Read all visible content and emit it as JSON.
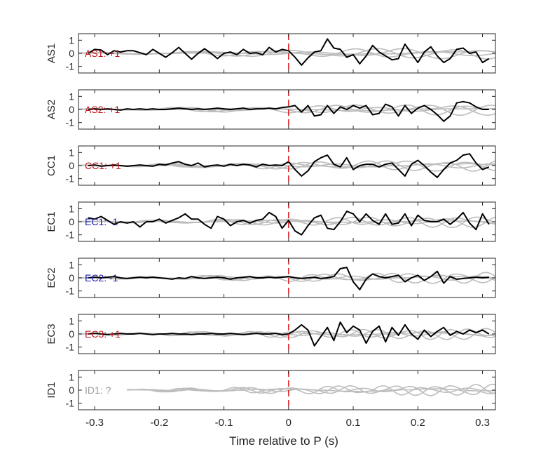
{
  "figure": {
    "xlabel": "Time relative to P (s)"
  },
  "chart_data": {
    "type": "line",
    "xlabel": "Time relative to P (s)",
    "xlim": [
      -0.325,
      0.32
    ],
    "xticks": [
      -0.3,
      -0.2,
      -0.1,
      0,
      0.1,
      0.2,
      0.3
    ],
    "xtick_labels": [
      "-0.3",
      "-0.2",
      "-0.1",
      "0",
      "0.1",
      "0.2",
      "0.3"
    ],
    "ylim": [
      -1.5,
      1.5
    ],
    "yticks": [
      1,
      0,
      -1
    ],
    "ytick_labels": [
      "1",
      "0",
      "-1"
    ],
    "marker_x": 0,
    "colors": {
      "trace": "#000000",
      "background_traces": "#bdbdbd",
      "marker_line": "#e02020",
      "label_positive": "#c0141b",
      "label_negative": "#1a1aa8",
      "label_unknown": "#9a9a9a"
    },
    "panels": [
      {
        "ylabel": "AS1",
        "label": "AS1: +1",
        "label_color": "#c0141b",
        "x": [
          -0.31,
          -0.3,
          -0.29,
          -0.28,
          -0.27,
          -0.26,
          -0.25,
          -0.24,
          -0.23,
          -0.22,
          -0.21,
          -0.2,
          -0.19,
          -0.18,
          -0.17,
          -0.16,
          -0.15,
          -0.14,
          -0.13,
          -0.12,
          -0.11,
          -0.1,
          -0.09,
          -0.08,
          -0.07,
          -0.06,
          -0.05,
          -0.04,
          -0.03,
          -0.02,
          -0.01,
          0,
          0.01,
          0.02,
          0.03,
          0.04,
          0.05,
          0.06,
          0.07,
          0.08,
          0.09,
          0.1,
          0.11,
          0.12,
          0.13,
          0.14,
          0.15,
          0.16,
          0.17,
          0.18,
          0.19,
          0.2,
          0.21,
          0.22,
          0.23,
          0.24,
          0.25,
          0.26,
          0.27,
          0.28,
          0.29,
          0.3,
          0.31
        ],
        "values": [
          0.0,
          0.3,
          0.25,
          -0.1,
          0.2,
          0.1,
          0.2,
          0.2,
          0.05,
          -0.1,
          0.3,
          0.0,
          -0.3,
          0.05,
          0.45,
          0.0,
          -0.45,
          0.0,
          0.35,
          0.0,
          -0.4,
          0.0,
          0.1,
          -0.1,
          0.3,
          0.0,
          0.05,
          -0.1,
          0.45,
          0.1,
          0.3,
          0.2,
          -0.3,
          -0.9,
          -0.35,
          0.1,
          0.2,
          1.1,
          0.4,
          0.3,
          -0.3,
          -0.1,
          -0.8,
          -0.2,
          0.6,
          0.1,
          -0.2,
          -0.5,
          -0.4,
          0.7,
          0.0,
          -0.7,
          0.1,
          0.5,
          -0.2,
          -0.7,
          -0.4,
          0.3,
          0.4,
          0.0,
          0.1,
          -0.7,
          -0.4
        ]
      },
      {
        "ylabel": "AS2",
        "label": "AS2: +1",
        "label_color": "#c0141b",
        "x": [
          -0.31,
          -0.3,
          -0.29,
          -0.28,
          -0.27,
          -0.26,
          -0.25,
          -0.24,
          -0.23,
          -0.22,
          -0.21,
          -0.2,
          -0.19,
          -0.18,
          -0.17,
          -0.16,
          -0.15,
          -0.14,
          -0.13,
          -0.12,
          -0.11,
          -0.1,
          -0.09,
          -0.08,
          -0.07,
          -0.06,
          -0.05,
          -0.04,
          -0.03,
          -0.02,
          -0.01,
          0,
          0.01,
          0.02,
          0.03,
          0.04,
          0.05,
          0.06,
          0.07,
          0.08,
          0.09,
          0.1,
          0.11,
          0.12,
          0.13,
          0.14,
          0.15,
          0.16,
          0.17,
          0.18,
          0.19,
          0.2,
          0.21,
          0.22,
          0.23,
          0.24,
          0.25,
          0.26,
          0.27,
          0.28,
          0.29,
          0.3,
          0.31
        ],
        "values": [
          0.0,
          0.05,
          0.0,
          0.05,
          0.0,
          -0.05,
          0.05,
          0.0,
          0.05,
          0.0,
          0.05,
          0.0,
          0.0,
          0.05,
          0.1,
          0.05,
          0.0,
          0.05,
          0.0,
          0.05,
          0.1,
          0.05,
          0.0,
          0.05,
          0.1,
          0.0,
          0.05,
          0.05,
          0.1,
          0.05,
          0.15,
          0.2,
          0.3,
          -0.2,
          0.3,
          -0.5,
          -0.4,
          0.3,
          -0.3,
          0.2,
          0.0,
          0.3,
          0.1,
          0.3,
          -0.4,
          -0.3,
          0.4,
          0.2,
          -0.5,
          0.3,
          -0.3,
          0.1,
          0.3,
          0.0,
          -0.4,
          -0.9,
          -0.5,
          0.5,
          0.6,
          0.5,
          0.2,
          0.0,
          0.0
        ]
      },
      {
        "ylabel": "CC1",
        "label": "CC1: +1",
        "label_color": "#c0141b",
        "x": [
          -0.31,
          -0.3,
          -0.29,
          -0.28,
          -0.27,
          -0.26,
          -0.25,
          -0.24,
          -0.23,
          -0.22,
          -0.21,
          -0.2,
          -0.19,
          -0.18,
          -0.17,
          -0.16,
          -0.15,
          -0.14,
          -0.13,
          -0.12,
          -0.11,
          -0.1,
          -0.09,
          -0.08,
          -0.07,
          -0.06,
          -0.05,
          -0.04,
          -0.03,
          -0.02,
          -0.01,
          0,
          0.01,
          0.02,
          0.03,
          0.04,
          0.05,
          0.06,
          0.07,
          0.08,
          0.09,
          0.1,
          0.11,
          0.12,
          0.13,
          0.14,
          0.15,
          0.16,
          0.17,
          0.18,
          0.19,
          0.2,
          0.21,
          0.22,
          0.23,
          0.24,
          0.25,
          0.26,
          0.27,
          0.28,
          0.29,
          0.3,
          0.31
        ],
        "values": [
          0.0,
          0.05,
          -0.05,
          0.0,
          0.05,
          0.0,
          -0.05,
          0.0,
          0.05,
          0.0,
          -0.05,
          0.1,
          0.05,
          0.2,
          0.3,
          0.1,
          0.0,
          0.2,
          -0.1,
          0.0,
          0.05,
          -0.05,
          0.1,
          0.0,
          0.1,
          0.05,
          -0.1,
          0.1,
          0.0,
          0.05,
          0.0,
          0.3,
          -0.3,
          -0.8,
          -0.4,
          0.3,
          0.6,
          0.8,
          0.1,
          -0.1,
          0.6,
          -0.3,
          0.0,
          0.1,
          0.1,
          -0.1,
          0.1,
          0.2,
          -0.3,
          -0.8,
          0.1,
          0.4,
          0.0,
          -0.5,
          -0.9,
          -0.3,
          0.2,
          0.4,
          0.8,
          0.9,
          0.2,
          -0.3,
          -0.1
        ]
      },
      {
        "ylabel": "EC1",
        "label": "EC1: -1",
        "label_color": "#1a1aa8",
        "x": [
          -0.31,
          -0.3,
          -0.29,
          -0.28,
          -0.27,
          -0.26,
          -0.25,
          -0.24,
          -0.23,
          -0.22,
          -0.21,
          -0.2,
          -0.19,
          -0.18,
          -0.17,
          -0.16,
          -0.15,
          -0.14,
          -0.13,
          -0.12,
          -0.11,
          -0.1,
          -0.09,
          -0.08,
          -0.07,
          -0.06,
          -0.05,
          -0.04,
          -0.03,
          -0.02,
          -0.01,
          0,
          0.01,
          0.02,
          0.03,
          0.04,
          0.05,
          0.06,
          0.07,
          0.08,
          0.09,
          0.1,
          0.11,
          0.12,
          0.13,
          0.14,
          0.15,
          0.16,
          0.17,
          0.18,
          0.19,
          0.2,
          0.21,
          0.22,
          0.23,
          0.24,
          0.25,
          0.26,
          0.27,
          0.28,
          0.29,
          0.3,
          0.31
        ],
        "values": [
          0.3,
          0.2,
          0.4,
          0.1,
          -0.2,
          0.0,
          -0.1,
          0.0,
          -0.4,
          0.0,
          0.0,
          0.2,
          -0.1,
          0.1,
          0.3,
          0.6,
          0.2,
          0.2,
          -0.2,
          -0.5,
          0.4,
          0.2,
          -0.3,
          0.0,
          0.1,
          -0.1,
          0.1,
          0.2,
          0.7,
          0.4,
          -0.5,
          0.1,
          -0.7,
          -1.0,
          -0.3,
          0.3,
          0.5,
          -0.5,
          -0.6,
          0.0,
          0.8,
          0.6,
          0.0,
          0.6,
          0.1,
          -0.2,
          0.6,
          -0.2,
          -0.1,
          0.6,
          -0.3,
          0.5,
          0.1,
          0.0,
          0.0,
          0.2,
          -0.2,
          0.2,
          0.7,
          -0.1,
          -0.6,
          0.6,
          -0.2
        ]
      },
      {
        "ylabel": "EC2",
        "label": "EC2: -1",
        "label_color": "#1a1aa8",
        "x": [
          -0.31,
          -0.3,
          -0.29,
          -0.28,
          -0.27,
          -0.26,
          -0.25,
          -0.24,
          -0.23,
          -0.22,
          -0.21,
          -0.2,
          -0.19,
          -0.18,
          -0.17,
          -0.16,
          -0.15,
          -0.14,
          -0.13,
          -0.12,
          -0.11,
          -0.1,
          -0.09,
          -0.08,
          -0.07,
          -0.06,
          -0.05,
          -0.04,
          -0.03,
          -0.02,
          -0.01,
          0,
          0.01,
          0.02,
          0.03,
          0.04,
          0.05,
          0.06,
          0.07,
          0.08,
          0.09,
          0.1,
          0.11,
          0.12,
          0.13,
          0.14,
          0.15,
          0.16,
          0.17,
          0.18,
          0.19,
          0.2,
          0.21,
          0.22,
          0.23,
          0.24,
          0.25,
          0.26,
          0.27,
          0.28,
          0.29,
          0.3,
          0.31
        ],
        "values": [
          0.0,
          0.05,
          0.0,
          0.05,
          0.1,
          0.0,
          -0.05,
          0.0,
          0.05,
          0.0,
          0.05,
          0.0,
          -0.05,
          -0.1,
          0.0,
          -0.05,
          0.1,
          0.0,
          -0.05,
          0.0,
          0.05,
          0.0,
          -0.1,
          0.0,
          0.05,
          0.1,
          0.0,
          0.0,
          0.05,
          0.0,
          0.05,
          0.1,
          0.0,
          -0.05,
          0.0,
          0.05,
          -0.05,
          0.0,
          0.1,
          0.7,
          0.8,
          -0.3,
          -0.9,
          -0.1,
          0.3,
          0.1,
          0.0,
          0.1,
          0.2,
          -0.3,
          0.0,
          0.2,
          -0.2,
          0.1,
          0.5,
          -0.4,
          0.1,
          -0.1,
          -0.05,
          0.0,
          0.05,
          0.0,
          0.05
        ]
      },
      {
        "ylabel": "EC3",
        "label": "EC3: +1",
        "label_color": "#c0141b",
        "x": [
          -0.31,
          -0.3,
          -0.29,
          -0.28,
          -0.27,
          -0.26,
          -0.25,
          -0.24,
          -0.23,
          -0.22,
          -0.21,
          -0.2,
          -0.19,
          -0.18,
          -0.17,
          -0.16,
          -0.15,
          -0.14,
          -0.13,
          -0.12,
          -0.11,
          -0.1,
          -0.09,
          -0.08,
          -0.07,
          -0.06,
          -0.05,
          -0.04,
          -0.03,
          -0.02,
          -0.01,
          0,
          0.01,
          0.02,
          0.03,
          0.04,
          0.05,
          0.06,
          0.07,
          0.08,
          0.09,
          0.1,
          0.11,
          0.12,
          0.13,
          0.14,
          0.15,
          0.16,
          0.17,
          0.18,
          0.19,
          0.2,
          0.21,
          0.22,
          0.23,
          0.24,
          0.25,
          0.26,
          0.27,
          0.28,
          0.29,
          0.3,
          0.31
        ],
        "values": [
          0.0,
          0.05,
          0.0,
          -0.05,
          0.0,
          0.05,
          0.0,
          0.0,
          0.05,
          0.0,
          -0.05,
          0.0,
          0.0,
          0.05,
          0.0,
          0.0,
          -0.05,
          0.0,
          0.0,
          0.05,
          0.0,
          0.0,
          0.05,
          0.0,
          -0.05,
          0.0,
          0.05,
          0.0,
          0.0,
          0.05,
          -0.05,
          0.0,
          0.3,
          0.7,
          0.3,
          -0.9,
          -0.2,
          0.5,
          -0.5,
          0.9,
          0.1,
          0.6,
          0.3,
          -0.7,
          0.2,
          0.6,
          -0.6,
          0.5,
          -0.1,
          0.7,
          0.0,
          -0.4,
          0.3,
          -0.2,
          0.2,
          0.5,
          -0.1,
          0.2,
          0.0,
          0.3,
          0.1,
          0.3,
          0.0
        ]
      },
      {
        "ylabel": "ID1",
        "label": "ID1: ?",
        "label_color": "#9a9a9a",
        "x": [],
        "values": []
      }
    ]
  }
}
